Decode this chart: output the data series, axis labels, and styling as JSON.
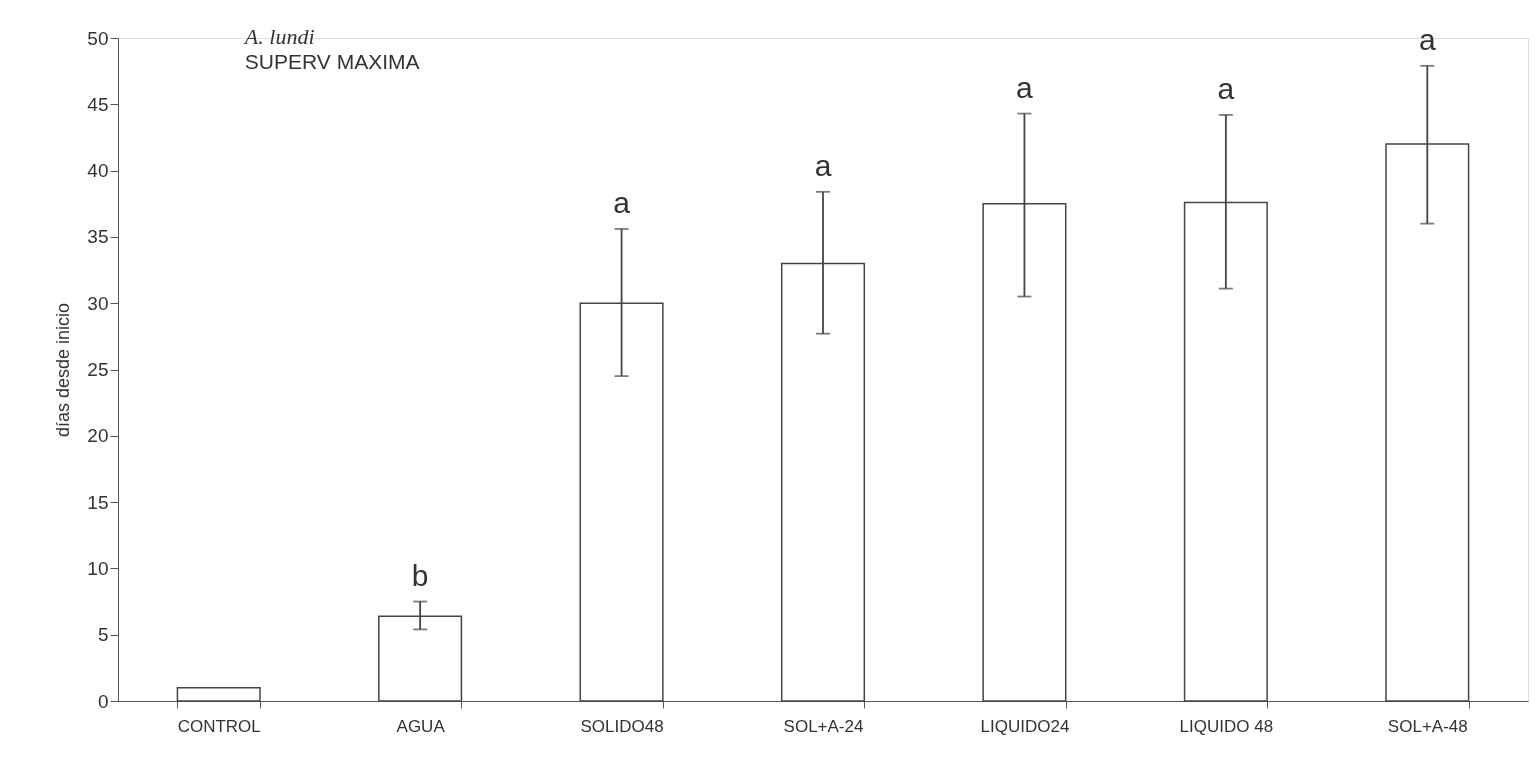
{
  "chart_data": {
    "type": "bar",
    "title": "A. lundi",
    "subtitle": "SUPERV MAXIMA",
    "ylabel": "días desde inicio",
    "categories": [
      "CONTROL",
      "AGUA",
      "SOLIDO48",
      "SOL+A-24",
      "LIQUIDO24",
      "LIQUIDO 48",
      "SOL+A-48"
    ],
    "values": [
      1.0,
      6.4,
      30.0,
      33.0,
      37.5,
      37.6,
      42.0
    ],
    "errors": [
      null,
      [
        5.4,
        7.5
      ],
      [
        24.5,
        35.6
      ],
      [
        27.7,
        38.4
      ],
      [
        30.5,
        44.3
      ],
      [
        31.1,
        44.2
      ],
      [
        36.0,
        47.9
      ]
    ],
    "color": "#ffffff",
    "ylim": [
      0,
      50
    ],
    "yticks": [
      0,
      5,
      10,
      15,
      20,
      25,
      30,
      35,
      40,
      45,
      50
    ],
    "grid": false,
    "annotations": [
      {
        "text": "b",
        "x": "AGUA",
        "y": 7.5
      },
      {
        "text": "a",
        "x": "SOLIDO48",
        "y": 35.6
      },
      {
        "text": "a",
        "x": "SOL+A-24",
        "y": 38.4
      },
      {
        "text": "a",
        "x": "LIQUIDO24",
        "y": 44.3
      },
      {
        "text": "a",
        "x": "LIQUIDO 48",
        "y": 44.2
      },
      {
        "text": "a",
        "x": "SOL+A-48",
        "y": 47.9
      }
    ]
  }
}
